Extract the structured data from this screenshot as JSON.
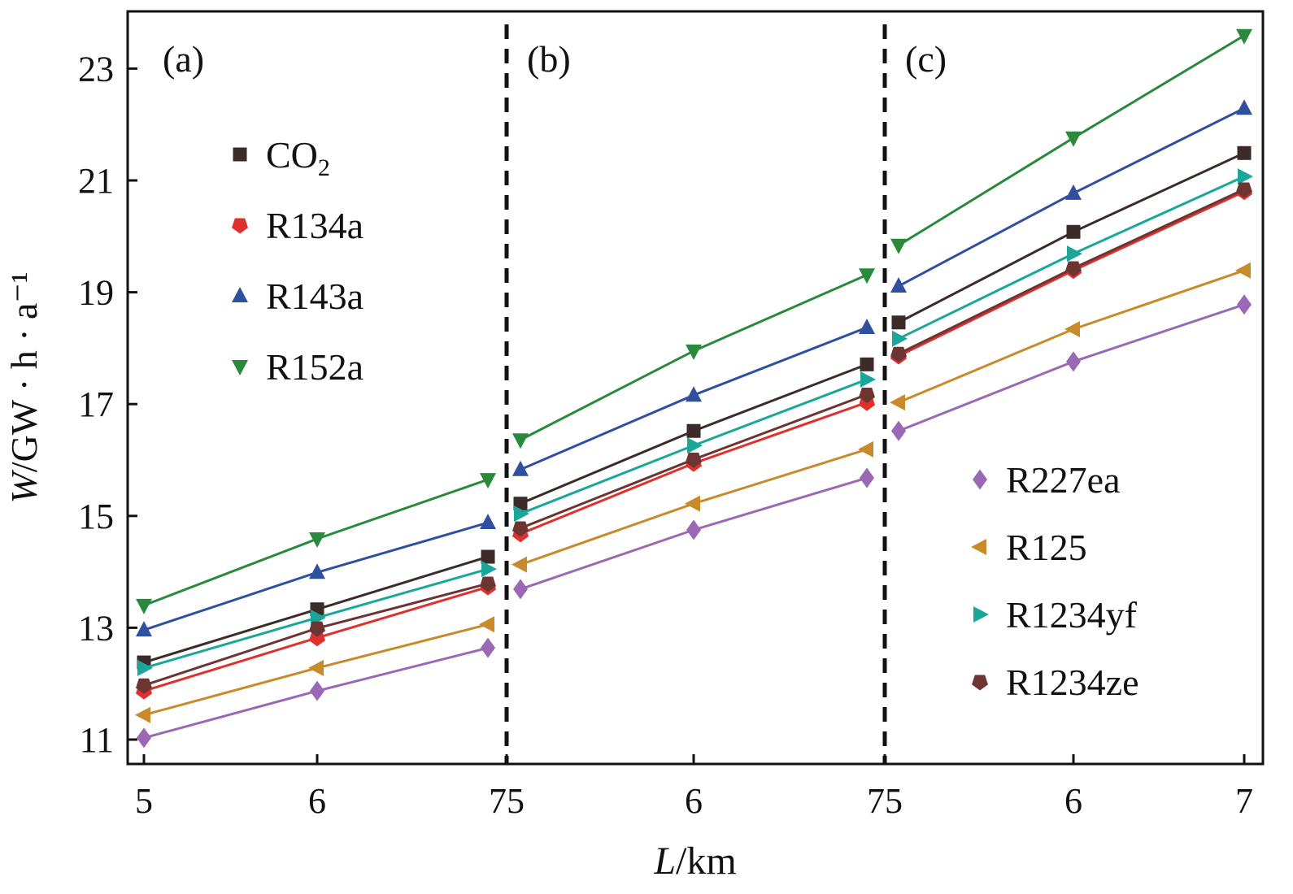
{
  "chart_data": {
    "type": "line",
    "title": "",
    "xlabel": "L/km",
    "ylabel": "W/GW · h · a⁻¹",
    "ylim": [
      10.6,
      24
    ],
    "yticks": [
      11,
      13,
      15,
      17,
      19,
      21,
      23
    ],
    "x_tick_labels": [
      "5",
      "6",
      "75",
      "6",
      "75",
      "6",
      "7"
    ],
    "grid": false,
    "panels": [
      {
        "label": "(a)",
        "x": [
          5,
          6,
          7
        ]
      },
      {
        "label": "(b)",
        "x": [
          5,
          6,
          7
        ]
      },
      {
        "label": "(c)",
        "x": [
          5,
          6,
          7
        ]
      }
    ],
    "legend_left": [
      "CO2",
      "R134a",
      "R143a",
      "R152a"
    ],
    "legend_right": [
      "R227ea",
      "R125",
      "R1234yf",
      "R1234ze"
    ],
    "legend_placement": [
      "top-left",
      "bottom-right"
    ],
    "series": [
      {
        "name": "CO2",
        "display": "CO",
        "sub": "2",
        "color": "#3b2b29",
        "marker": "square",
        "values": [
          [
            12.38,
            13.33,
            14.27
          ],
          [
            15.22,
            16.52,
            17.71
          ],
          [
            18.46,
            20.08,
            21.49
          ]
        ]
      },
      {
        "name": "R134a",
        "display": "R134a",
        "color": "#e0302e",
        "marker": "pentagon",
        "values": [
          [
            11.87,
            12.82,
            13.73
          ],
          [
            14.68,
            15.94,
            17.03
          ],
          [
            17.86,
            19.39,
            20.8
          ]
        ]
      },
      {
        "name": "R143a",
        "display": "R143a",
        "color": "#2f4f9f",
        "marker": "triangle-up",
        "values": [
          [
            12.96,
            13.99,
            14.88
          ],
          [
            15.83,
            17.16,
            18.37
          ],
          [
            19.11,
            20.77,
            22.29
          ]
        ]
      },
      {
        "name": "R152a",
        "display": "R152a",
        "color": "#2a8a3c",
        "marker": "triangle-down",
        "values": [
          [
            13.4,
            14.59,
            15.65
          ],
          [
            16.36,
            17.95,
            19.31
          ],
          [
            19.84,
            21.76,
            23.59
          ]
        ]
      },
      {
        "name": "R227ea",
        "display": "R227ea",
        "color": "#9a68b4",
        "marker": "diamond",
        "values": [
          [
            11.03,
            11.87,
            12.64
          ],
          [
            13.69,
            14.75,
            15.68
          ],
          [
            16.52,
            17.76,
            18.78
          ]
        ]
      },
      {
        "name": "R125",
        "display": "R125",
        "color": "#c98a2b",
        "marker": "triangle-left",
        "values": [
          [
            11.44,
            12.28,
            13.06
          ],
          [
            14.13,
            15.22,
            16.19
          ],
          [
            17.03,
            18.34,
            19.39
          ]
        ]
      },
      {
        "name": "R1234yf",
        "display": "R1234yf",
        "color": "#1aa79a",
        "marker": "triangle-right",
        "values": [
          [
            12.28,
            13.18,
            14.05
          ],
          [
            15.04,
            16.26,
            17.44
          ],
          [
            18.17,
            19.69,
            21.07
          ]
        ]
      },
      {
        "name": "R1234ze",
        "display": "R1234ze",
        "color": "#6e3432",
        "marker": "pentagon",
        "values": [
          [
            11.97,
            12.99,
            13.79
          ],
          [
            14.78,
            16.01,
            17.17
          ],
          [
            17.9,
            19.43,
            20.84
          ]
        ]
      }
    ]
  }
}
